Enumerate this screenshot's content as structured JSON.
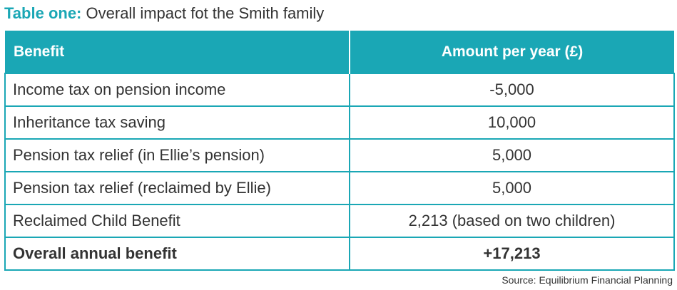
{
  "title": {
    "lead": "Table one:",
    "text": "Overall impact fot the Smith family"
  },
  "table": {
    "headers": [
      "Benefit",
      "Amount per year (£)"
    ],
    "rows": [
      {
        "benefit": "Income tax on pension income",
        "amount": "-5,000"
      },
      {
        "benefit": "Inheritance tax saving",
        "amount": "10,000"
      },
      {
        "benefit": "Pension tax relief (in Ellie’s pension)",
        "amount": "5,000"
      },
      {
        "benefit": "Pension tax relief (reclaimed by Ellie)",
        "amount": "5,000"
      },
      {
        "benefit": "Reclaimed Child Benefit",
        "amount": "2,213 (based on two children)"
      }
    ],
    "total": {
      "benefit": "Overall annual benefit",
      "amount": "+17,213"
    }
  },
  "source": "Source: Equilibrium Financial Planning",
  "colors": {
    "accent": "#1aa7b5",
    "text": "#333333",
    "header_text": "#ffffff"
  }
}
